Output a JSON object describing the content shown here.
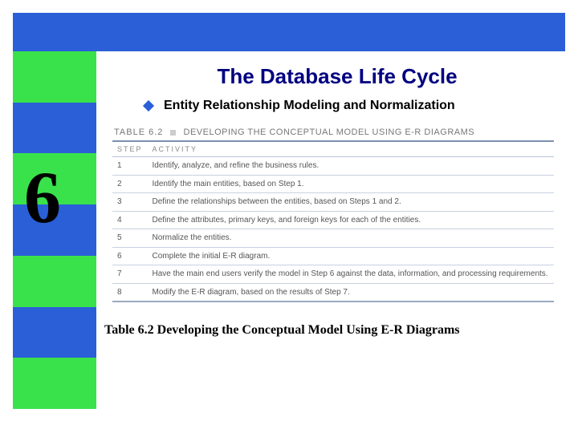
{
  "colors": {
    "topbar": "#2a5fd8",
    "stripe1": "#39e24a",
    "stripe2": "#2a5fd8",
    "title_color": "#000080"
  },
  "chapter_number": "6",
  "title": "The Database Life Cycle",
  "subtitle": "Entity Relationship Modeling and Normalization",
  "table_label_pre": "TABLE 6.2",
  "table_label_title": "DEVELOPING THE CONCEPTUAL MODEL USING E-R DIAGRAMS",
  "table_headers": {
    "step": "STEP",
    "activity": "ACTIVITY"
  },
  "table_rows": [
    {
      "step": "1",
      "activity": "Identify, analyze, and refine the business rules."
    },
    {
      "step": "2",
      "activity": "Identify the main entities, based on Step 1."
    },
    {
      "step": "3",
      "activity": "Define the relationships between the entities, based on Steps 1 and 2."
    },
    {
      "step": "4",
      "activity": "Define the attributes, primary keys, and foreign keys for each of the entities."
    },
    {
      "step": "5",
      "activity": "Normalize the entities."
    },
    {
      "step": "6",
      "activity": "Complete the initial E-R diagram."
    },
    {
      "step": "7",
      "activity": "Have the main end users verify the model in Step 6 against the data, information, and processing requirements."
    },
    {
      "step": "8",
      "activity": "Modify the E-R diagram, based on the results of Step 7."
    }
  ],
  "caption": "Table 6.2  Developing the Conceptual Model Using E-R Diagrams"
}
